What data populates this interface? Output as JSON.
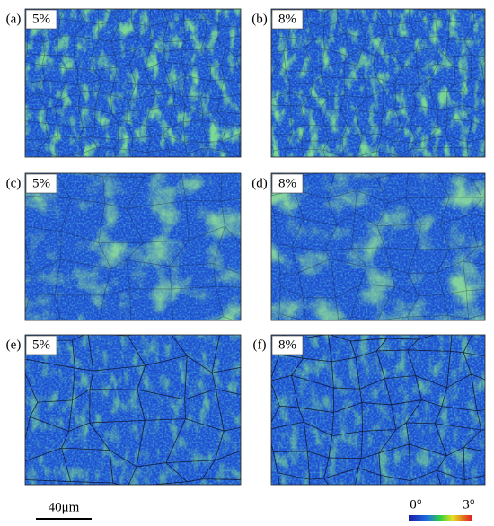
{
  "panels": [
    {
      "label": "(a)",
      "tag": "5%"
    },
    {
      "label": "(b)",
      "tag": "8%"
    },
    {
      "label": "(c)",
      "tag": "5%"
    },
    {
      "label": "(d)",
      "tag": "8%"
    },
    {
      "label": "(e)",
      "tag": "5%"
    },
    {
      "label": "(f)",
      "tag": "8%"
    }
  ],
  "scale_bar": {
    "label": "40μm"
  },
  "colorbar": {
    "min_label": "0°",
    "max_label": "3°"
  }
}
